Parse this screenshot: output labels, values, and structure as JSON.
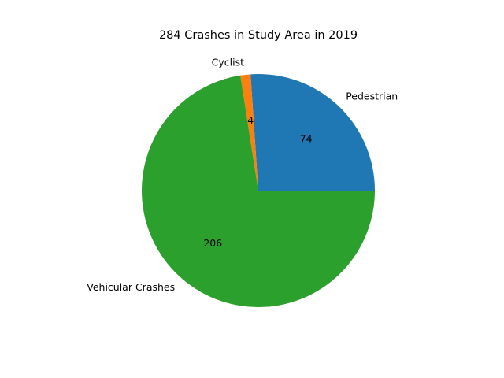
{
  "chart_data": {
    "type": "pie",
    "title": "284 Crashes in Study Area in 2019",
    "slices": [
      {
        "label": "Pedestrian",
        "value": 74,
        "value_label": "74",
        "color": "#1f77b4"
      },
      {
        "label": "Cyclist",
        "value": 4,
        "value_label": "4",
        "color": "#ff7f0e"
      },
      {
        "label": "Vehicular Crashes",
        "value": 206,
        "value_label": "206",
        "color": "#2ca02c"
      }
    ],
    "start_angle_deg": 0,
    "direction": "counterclockwise",
    "legend": "none"
  }
}
